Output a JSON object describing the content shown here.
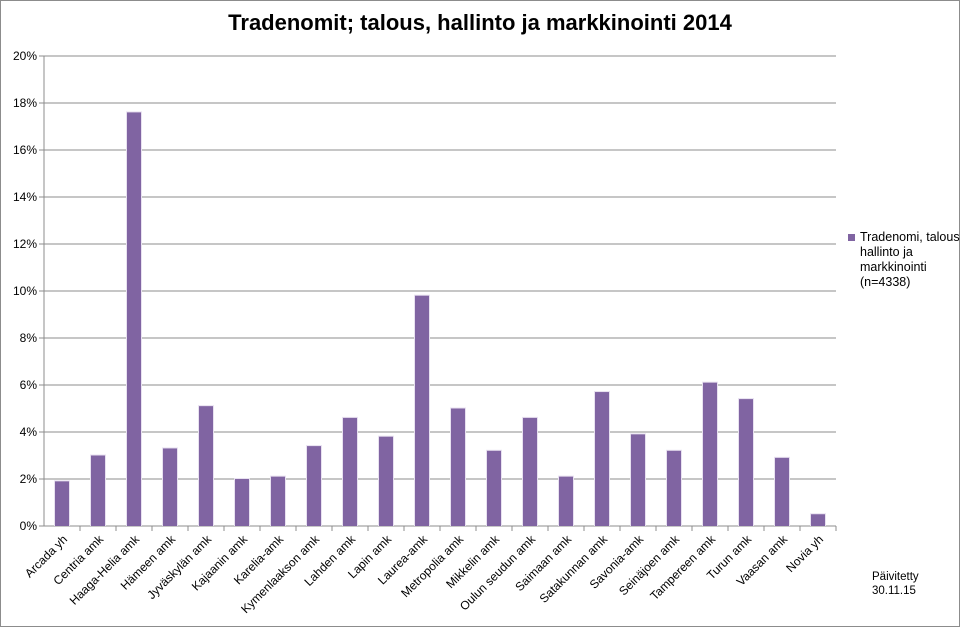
{
  "chart_data": {
    "type": "bar",
    "title": "Tradenomit; talous, hallinto ja markkinointi 2014",
    "categories": [
      "Arcada yh",
      "Centria amk",
      "Haaga-Helia amk",
      "Hämeen amk",
      "Jyväskylän amk",
      "Kajaanin amk",
      "Karelia-amk",
      "Kymenlaakson amk",
      "Lahden amk",
      "Lapin amk",
      "Laurea-amk",
      "Metropolia amk",
      "Mikkelin amk",
      "Oulun seudun amk",
      "Saimaan amk",
      "Satakunnan amk",
      "Savonia-amk",
      "Seinäjoen amk",
      "Tampereen amk",
      "Turun amk",
      "Vaasan amk",
      "Novia yh"
    ],
    "series": [
      {
        "name": "Tradenomi, talous, hallinto ja markkinointi (n=4338)",
        "values": [
          1.9,
          3.0,
          17.6,
          3.3,
          5.1,
          2.0,
          2.1,
          3.4,
          4.6,
          3.8,
          9.8,
          5.0,
          3.2,
          4.6,
          2.1,
          5.7,
          3.9,
          3.2,
          6.1,
          5.4,
          2.9,
          0.5
        ],
        "color": "#8064a2"
      }
    ],
    "yticks": [
      "0%",
      "2%",
      "4%",
      "6%",
      "8%",
      "10%",
      "12%",
      "14%",
      "16%",
      "18%",
      "20%"
    ],
    "ylim": [
      0,
      20
    ],
    "grid": true,
    "legend_position": "right"
  },
  "footer": {
    "updated_label": "Päivitetty",
    "updated_date": "30.11.15"
  }
}
